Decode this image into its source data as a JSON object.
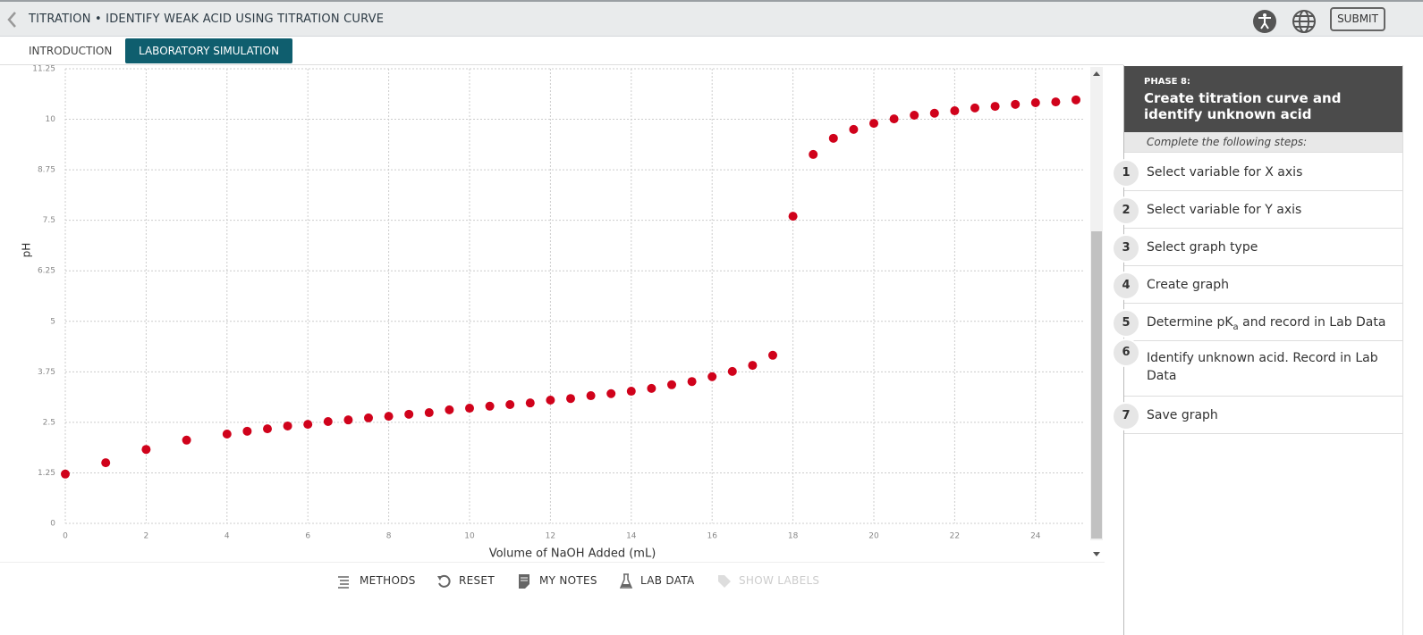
{
  "header": {
    "title": "TITRATION • IDENTIFY WEAK ACID USING TITRATION CURVE",
    "submit": "SUBMIT"
  },
  "tabs": [
    "INTRODUCTION",
    "LABORATORY SIMULATION"
  ],
  "chart_data": {
    "type": "scatter",
    "x_label": "Volume of NaOH Added (mL)",
    "y_label": "pH",
    "x": [
      0,
      1,
      2,
      3,
      4,
      4.5,
      5,
      5.5,
      6,
      6.5,
      7,
      7.5,
      8,
      8.5,
      9,
      9.5,
      10,
      10.5,
      11,
      11.5,
      12,
      12.5,
      13,
      13.5,
      14,
      14.5,
      15,
      15.5,
      16,
      16.5,
      17,
      17.5,
      18,
      18.5,
      19,
      19.5,
      20,
      20.5,
      21,
      21.5,
      22,
      22.5,
      23,
      23.5,
      24,
      24.5,
      25
    ],
    "values": [
      1.22,
      1.5,
      1.83,
      2.06,
      2.21,
      2.28,
      2.34,
      2.41,
      2.45,
      2.52,
      2.56,
      2.61,
      2.65,
      2.7,
      2.74,
      2.81,
      2.85,
      2.9,
      2.94,
      2.98,
      3.05,
      3.09,
      3.16,
      3.21,
      3.27,
      3.34,
      3.43,
      3.51,
      3.63,
      3.76,
      3.91,
      4.16,
      7.6,
      9.13,
      9.53,
      9.75,
      9.9,
      10.01,
      10.1,
      10.15,
      10.21,
      10.28,
      10.32,
      10.37,
      10.41,
      10.43,
      10.48
    ],
    "color": "#d0021b",
    "xlim": [
      0,
      25
    ],
    "ylim": [
      0,
      11.25
    ],
    "xticks": [
      0,
      2,
      4,
      6,
      8,
      10,
      12,
      14,
      16,
      18,
      20,
      22,
      24
    ],
    "yticks": [
      0,
      1.25,
      2.5,
      3.75,
      5,
      6.25,
      7.5,
      8.75,
      10,
      11.25
    ],
    "grid": true
  },
  "panel": {
    "phase": "PHASE 8:",
    "title": "Create titration curve and identify unknown acid",
    "instructions": "Complete the following steps:",
    "steps": [
      {
        "number": 1,
        "text": "Select variable for X axis"
      },
      {
        "number": 2,
        "text": "Select variable for Y axis"
      },
      {
        "number": 3,
        "text": "Select graph type"
      },
      {
        "number": 4,
        "text": "Create graph"
      },
      {
        "number": 5,
        "text": "Determine pK",
        "sub": "a",
        "after": " and record in Lab Data"
      },
      {
        "number": 6,
        "text": "Identify unknown acid. Record in Lab Data"
      },
      {
        "number": 7,
        "text": "Save graph"
      }
    ]
  },
  "toolbar": [
    "METHODS",
    "RESET",
    "MY NOTES",
    "LAB DATA",
    "SHOW LABELS"
  ]
}
